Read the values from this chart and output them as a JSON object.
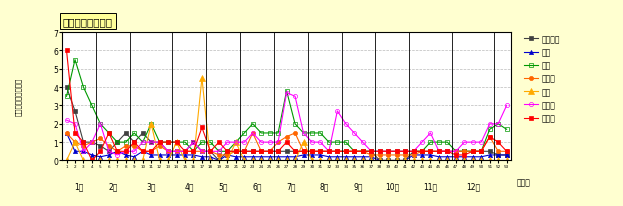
{
  "title": "保健所別発生動向",
  "ylabel": "定点当たり報告者数",
  "xlabel_bottom": "（週）",
  "month_labels": [
    "1月",
    "2月",
    "3月",
    "4月",
    "5月",
    "6月",
    "7月",
    "8月",
    "9月",
    "10月",
    "11月",
    "12月"
  ],
  "ylim": [
    0,
    7
  ],
  "yticks": [
    0,
    1,
    2,
    3,
    4,
    5,
    6,
    7
  ],
  "num_weeks": 53,
  "series": {
    "四国中央": {
      "color": "#404040",
      "marker": "s",
      "markersize": 3,
      "linewidth": 0.8,
      "markerfacecolor": "#404040",
      "values": [
        4,
        2.7,
        1,
        1,
        0.8,
        0.5,
        1,
        1.5,
        1,
        1.5,
        1,
        1,
        0.5,
        0.5,
        0.5,
        1,
        0.5,
        0.5,
        0,
        0.5,
        0.5,
        0.5,
        0.5,
        0.5,
        0.5,
        0.5,
        0.5,
        0.5,
        0.5,
        0.5,
        0.5,
        0.5,
        0.5,
        0.5,
        0.5,
        0.5,
        0.5,
        0,
        0,
        0,
        0,
        0.5,
        0.5,
        0.5,
        0.5,
        0.5,
        0.5,
        0.5,
        0.5,
        0.5,
        0.5,
        0.3,
        0.3
      ]
    },
    "西条": {
      "color": "#0000cc",
      "marker": "^",
      "markersize": 3,
      "linewidth": 0.8,
      "markerfacecolor": "#0000cc",
      "values": [
        1.5,
        0.5,
        0.5,
        0.3,
        0.2,
        0.3,
        0.5,
        0.3,
        0.2,
        0.5,
        0.3,
        0.3,
        0.3,
        0.3,
        0.3,
        0.3,
        0.2,
        0.2,
        0,
        0.3,
        0.2,
        0.2,
        0.2,
        0.2,
        0.2,
        0.2,
        0.2,
        0.2,
        0.3,
        0.3,
        0.3,
        0.2,
        0.2,
        0.2,
        0.2,
        0.2,
        0.2,
        0,
        0,
        0,
        0,
        0.3,
        0.3,
        0.3,
        0.2,
        0.2,
        0.2,
        0.2,
        0.2,
        0.2,
        0.3,
        0.3,
        0.3
      ]
    },
    "今治": {
      "color": "#009900",
      "marker": "s",
      "markersize": 3,
      "linewidth": 0.8,
      "markerfacecolor": "none",
      "values": [
        3.5,
        5.5,
        4,
        3,
        2,
        1.5,
        1,
        1,
        1.5,
        1,
        2,
        1,
        1,
        1,
        1,
        0.5,
        1,
        1,
        0.5,
        0.5,
        1,
        1.5,
        2,
        1.5,
        1.5,
        1.5,
        3.8,
        2,
        1.5,
        1.5,
        1.5,
        1,
        1,
        1,
        0.5,
        0.5,
        0.5,
        0.5,
        0.5,
        0.5,
        0.5,
        0.5,
        0.5,
        1,
        1,
        1,
        0.5,
        0.5,
        0.5,
        0.5,
        1.7,
        2,
        1.7
      ]
    },
    "松山市": {
      "color": "#ff6600",
      "marker": "o",
      "markersize": 3,
      "linewidth": 0.8,
      "markerfacecolor": "#ff6600",
      "values": [
        1.5,
        1,
        0.8,
        1,
        1.2,
        0.8,
        0.5,
        0.8,
        0.8,
        0.5,
        0.5,
        0.8,
        0.5,
        0.5,
        0.5,
        0.5,
        0.5,
        0.5,
        0.3,
        0.3,
        0.5,
        0.5,
        1.5,
        0.5,
        0.5,
        1,
        1.3,
        1.5,
        0.5,
        0.5,
        0.5,
        0.5,
        0.5,
        0.5,
        0.5,
        0.5,
        0.3,
        0.3,
        0.3,
        0.3,
        0.3,
        0.3,
        0.5,
        0.5,
        0.5,
        0.5,
        0.5,
        0.5,
        0.5,
        0.5,
        1.3,
        0.5,
        0.5
      ]
    },
    "中子": {
      "color": "#ffaa00",
      "marker": "^",
      "markersize": 4,
      "linewidth": 0.8,
      "markerfacecolor": "#ffaa00",
      "values": [
        0,
        1,
        0,
        0,
        0,
        0,
        0,
        0,
        0,
        0,
        2,
        0,
        0,
        1,
        0,
        0,
        4.5,
        0,
        0,
        0,
        1,
        0,
        0,
        0,
        0,
        0,
        0,
        0,
        1,
        0,
        0,
        0,
        0,
        0,
        0,
        0,
        0,
        0,
        0,
        0,
        0,
        0,
        0,
        0,
        0,
        0,
        0,
        0,
        0,
        0,
        0,
        0,
        0
      ]
    },
    "八幡浜": {
      "color": "#ff00ff",
      "marker": "o",
      "markersize": 3,
      "linewidth": 0.8,
      "markerfacecolor": "none",
      "values": [
        2.2,
        2,
        0.5,
        1,
        2,
        0.5,
        0.3,
        0.5,
        0.5,
        1,
        1,
        1,
        0.5,
        0.5,
        0.5,
        1,
        0.5,
        0.5,
        0.5,
        1,
        1,
        1,
        1.5,
        1,
        1,
        1,
        3.7,
        3.5,
        1.5,
        1,
        1,
        0.5,
        2.7,
        2,
        1.5,
        1,
        0.5,
        0.5,
        0.5,
        0.5,
        0.5,
        0.5,
        1,
        1.5,
        0.5,
        0.5,
        0.5,
        1,
        1,
        1,
        2,
        2,
        3
      ]
    },
    "宇和島": {
      "color": "#ff0000",
      "marker": "s",
      "markersize": 3,
      "linewidth": 0.8,
      "markerfacecolor": "#ff0000",
      "values": [
        6,
        1.5,
        1,
        0,
        0.5,
        1.5,
        0.5,
        0.5,
        1,
        0.5,
        0.5,
        1,
        1,
        1,
        0.5,
        0.5,
        1.8,
        0.5,
        1,
        0.5,
        0.5,
        0.5,
        0.5,
        0.5,
        0.5,
        0.5,
        1,
        0.5,
        0.5,
        0.5,
        0.5,
        0.5,
        0.5,
        0.5,
        0.5,
        0.5,
        0.5,
        0.5,
        0.5,
        0.5,
        0.5,
        0.5,
        0.5,
        0.5,
        0.5,
        0.5,
        0.3,
        0.3,
        0.5,
        0.5,
        1.3,
        1,
        0.5
      ]
    }
  },
  "legend_order": [
    "四国中央",
    "西条",
    "今治",
    "松山市",
    "中子",
    "八幡浜",
    "宇和島"
  ],
  "title_box_color": "#ffff99",
  "bg_color": "#ffffd0",
  "plot_bg_color": "#ffffff",
  "grid_color": "#bbbbbb",
  "month_boundaries": [
    4.5,
    8.5,
    13.5,
    17.5,
    21.5,
    25.5,
    29.5,
    33.5,
    37.5,
    41.5,
    46.5,
    51.5
  ],
  "month_positions": [
    2.5,
    6.5,
    11.0,
    15.5,
    19.5,
    23.5,
    27.5,
    31.5,
    35.5,
    39.5,
    44.0,
    49.0
  ]
}
